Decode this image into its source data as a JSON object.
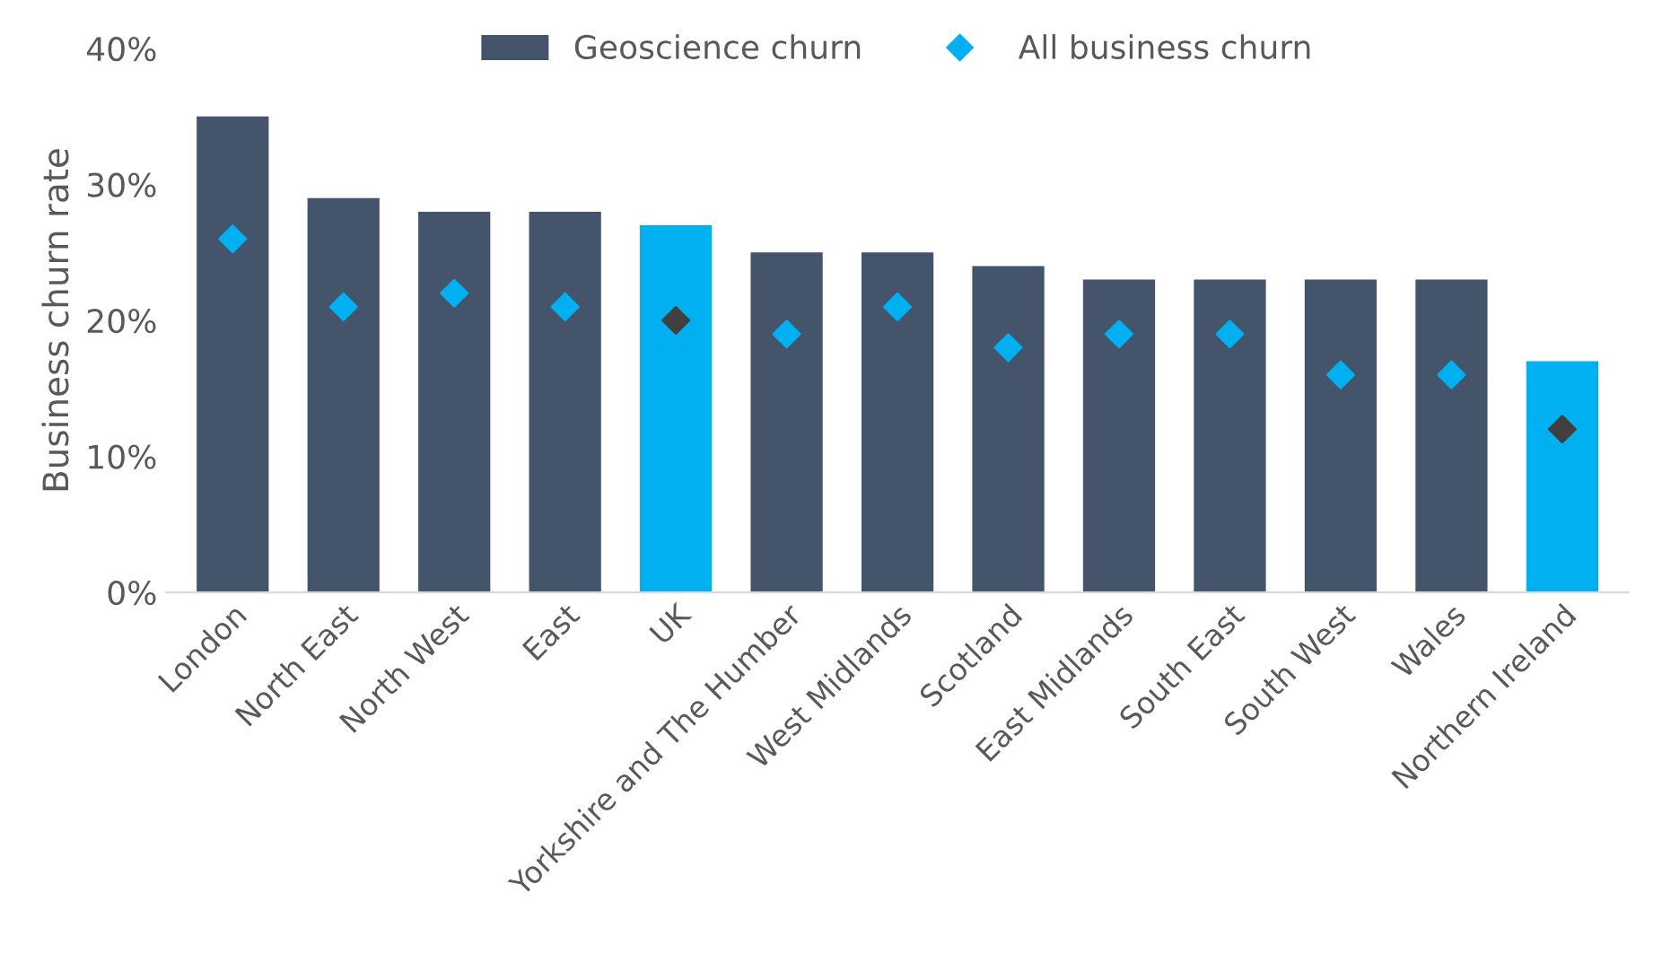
{
  "chart_data": {
    "type": "bar",
    "ylabel": "Business churn rate",
    "categories": [
      "London",
      "North East",
      "North West",
      "East",
      "UK",
      "Yorkshire and The Humber",
      "West Midlands",
      "Scotland",
      "East Midlands",
      "South East",
      "South West",
      "Wales",
      "Northern Ireland"
    ],
    "series": [
      {
        "name": "Geoscience churn",
        "color": "#44546a",
        "colors": [
          "#44546a",
          "#44546a",
          "#44546a",
          "#44546a",
          "#00b0f0",
          "#44546a",
          "#44546a",
          "#44546a",
          "#44546a",
          "#44546a",
          "#44546a",
          "#44546a",
          "#00b0f0"
        ],
        "values": [
          35,
          29,
          28,
          28,
          27,
          25,
          25,
          24,
          23,
          23,
          23,
          23,
          17
        ]
      },
      {
        "name": "All business churn",
        "type": "scatter",
        "marker": "diamond",
        "color": "#00b0f0",
        "colors": [
          "#00b0f0",
          "#00b0f0",
          "#00b0f0",
          "#00b0f0",
          "#404040",
          "#00b0f0",
          "#00b0f0",
          "#00b0f0",
          "#00b0f0",
          "#00b0f0",
          "#00b0f0",
          "#00b0f0",
          "#404040"
        ],
        "x": [
          "London",
          "North East",
          "North West",
          "East",
          "UK",
          "Yorkshire and The Humber",
          "West Midlands",
          "Scotland",
          "East Midlands",
          "South East",
          "South West",
          "Wales",
          "Northern Ireland"
        ],
        "values": [
          26,
          21,
          22,
          21,
          20,
          19,
          21,
          18,
          19,
          19,
          16,
          16,
          12
        ]
      }
    ],
    "ylim": [
      0,
      40
    ],
    "yticks": [
      {
        "value": 0,
        "label": "0%"
      },
      {
        "value": 10,
        "label": "10%"
      },
      {
        "value": 20,
        "label": "20%"
      },
      {
        "value": 30,
        "label": "30%"
      },
      {
        "value": 40,
        "label": "40%"
      }
    ],
    "grid": false,
    "legend": "top"
  }
}
